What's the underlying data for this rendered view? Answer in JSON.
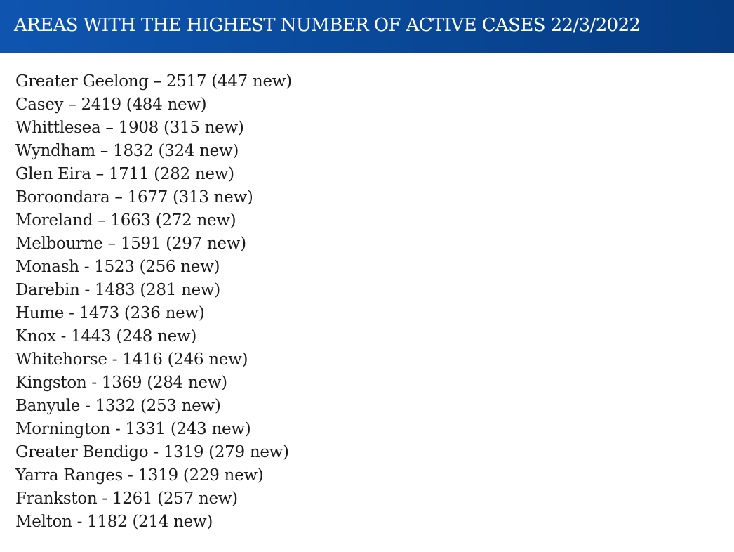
{
  "header": {
    "title": "AREAS WITH THE HIGHEST NUMBER OF ACTIVE CASES 22/3/2022"
  },
  "colors": {
    "header_background": "#0a4a9c",
    "header_text": "#ffffff",
    "body_text": "#1b1b1b"
  },
  "areas": [
    "Greater Geelong – 2517 (447 new)",
    "Casey – 2419 (484 new)",
    "Whittlesea – 1908 (315 new)",
    "Wyndham – 1832 (324 new)",
    "Glen Eira – 1711 (282 new)",
    "Boroondara – 1677 (313 new)",
    "Moreland – 1663 (272 new)",
    "Melbourne – 1591 (297 new)",
    "Monash - 1523 (256 new)",
    "Darebin - 1483 (281 new)",
    "Hume - 1473 (236 new)",
    "Knox - 1443 (248 new)",
    "Whitehorse - 1416 (246 new)",
    "Kingston - 1369 (284 new)",
    "Banyule - 1332 (253 new)",
    "Mornington - 1331 (243 new)",
    "Greater Bendigo - 1319 (279 new)",
    "Yarra Ranges - 1319 (229 new)",
    "Frankston - 1261 (257 new)",
    "Melton - 1182 (214 new)"
  ]
}
